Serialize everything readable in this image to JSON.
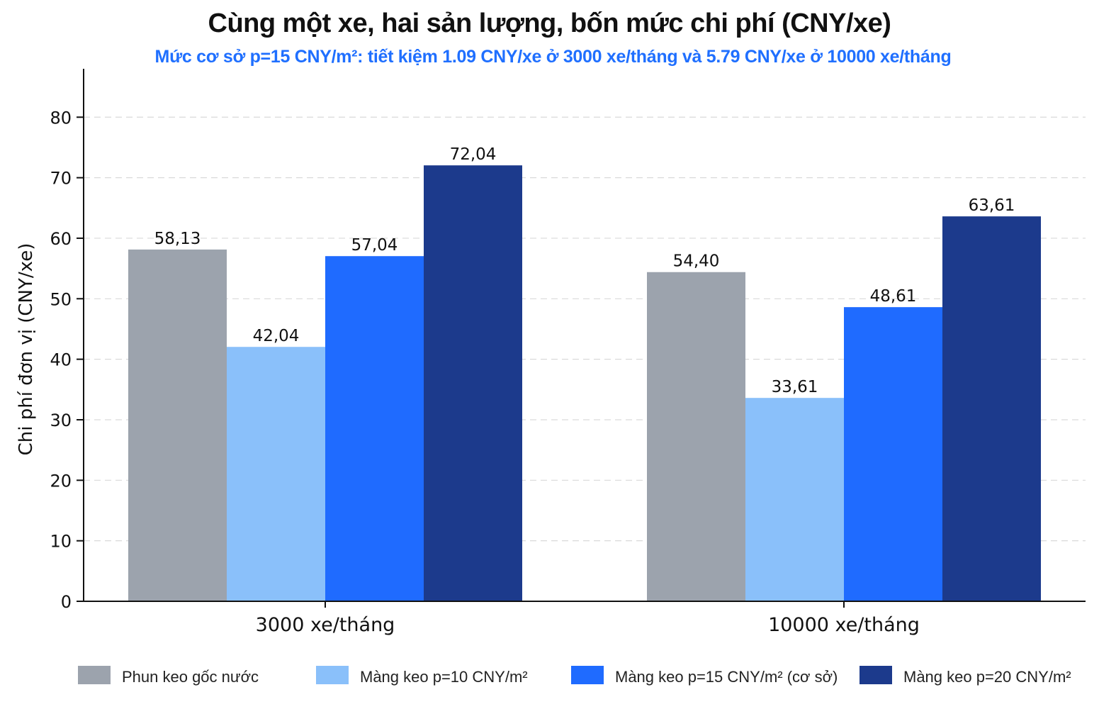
{
  "chart_data": {
    "type": "bar",
    "title": "Cùng một xe, hai sản lượng, bốn mức chi phí (CNY/xe)",
    "subtitle": "Mức cơ sở p=15 CNY/m²: tiết kiệm 1.09 CNY/xe ở 3000 xe/tháng và 5.79 CNY/xe ở 10000 xe/tháng",
    "xlabel": "",
    "ylabel": "Chi phí đơn vị (CNY/xe)",
    "ylim": [
      0,
      88
    ],
    "yticks": [
      0,
      10,
      20,
      30,
      40,
      50,
      60,
      70,
      80
    ],
    "grid": true,
    "legend_position": "bottom",
    "categories": [
      "3000 xe/tháng",
      "10000 xe/tháng"
    ],
    "series": [
      {
        "name": "Phun keo gốc nước",
        "values": [
          58.13,
          54.4
        ],
        "labels": [
          "58,13",
          "54,40"
        ],
        "color": "#9ca3ad"
      },
      {
        "name": "Màng keo p=10 CNY/m²",
        "values": [
          42.04,
          33.61
        ],
        "labels": [
          "42,04",
          "33,61"
        ],
        "color": "#8ac0fa"
      },
      {
        "name": "Màng keo p=15 CNY/m² (cơ sở)",
        "values": [
          57.04,
          48.61
        ],
        "labels": [
          "57,04",
          "48,61"
        ],
        "color": "#1f6bff"
      },
      {
        "name": "Màng keo p=20 CNY/m²",
        "values": [
          72.04,
          63.61
        ],
        "labels": [
          "72,04",
          "63,61"
        ],
        "color": "#1c3a8c"
      }
    ]
  }
}
